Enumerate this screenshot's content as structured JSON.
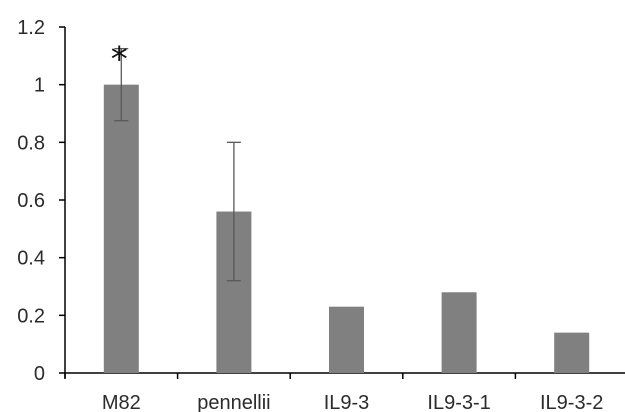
{
  "chart_data": {
    "type": "bar",
    "title": "",
    "xlabel": "",
    "ylabel": "",
    "categories": [
      "M82",
      "pennellii",
      "IL9-3",
      "IL9-3-1",
      "IL9-3-2"
    ],
    "values": [
      1.0,
      0.56,
      0.23,
      0.28,
      0.14
    ],
    "error_low": [
      0.875,
      0.32,
      null,
      null,
      null
    ],
    "error_high": [
      1.125,
      0.8,
      null,
      null,
      null
    ],
    "ylim": [
      0,
      1.2
    ],
    "yticks": [
      "0",
      "0.2",
      "0.4",
      "0.6",
      "0.8",
      "1",
      "1.2"
    ],
    "annotations": [
      {
        "category": "M82",
        "text": "*"
      }
    ],
    "grid": false,
    "legend": "none",
    "colors": {
      "bar": "#808080",
      "error_bar": "#595959",
      "axis": "#000000",
      "text": "#2b2b2b"
    }
  }
}
